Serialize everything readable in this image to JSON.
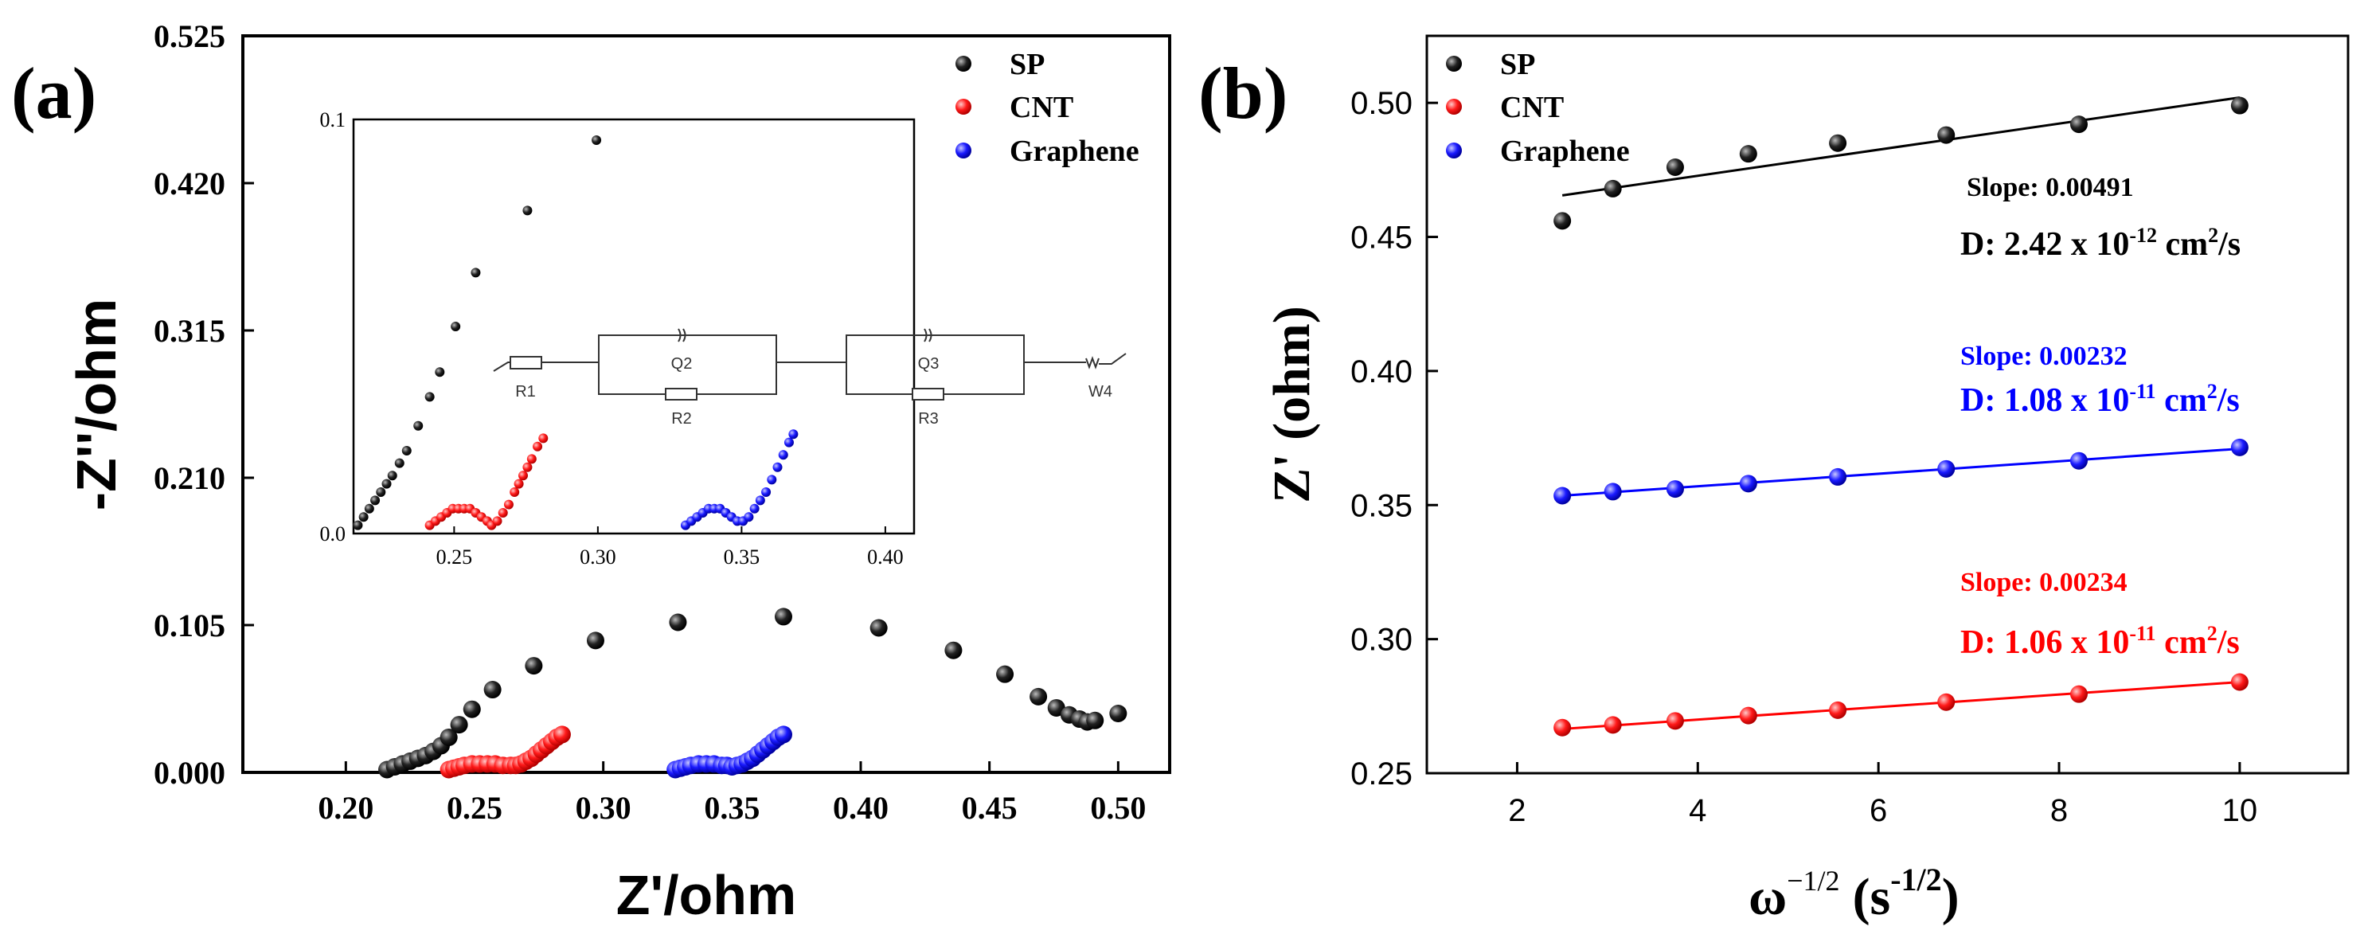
{
  "panel_labels": {
    "a": "(a)",
    "b": "(b)"
  },
  "colors": {
    "SP": "#000000",
    "CNT": "#ff0000",
    "Graphene": "#0000ff"
  },
  "chart_data": [
    {
      "id": "a",
      "type": "scatter",
      "title": "",
      "xlabel": "Z'/ohm",
      "ylabel": "-Z''/ohm",
      "xlim": [
        0.16,
        0.52
      ],
      "ylim": [
        0,
        0.525
      ],
      "xticks": [
        "0.20",
        "0.25",
        "0.30",
        "0.35",
        "0.40",
        "0.45",
        "0.50"
      ],
      "yticks": [
        "0.000",
        "0.105",
        "0.210",
        "0.315",
        "0.420",
        "0.525"
      ],
      "legend": [
        "SP",
        "CNT",
        "Graphene"
      ],
      "series": [
        {
          "name": "SP",
          "points": [
            [
              0.216,
              0.002
            ],
            [
              0.219,
              0.004
            ],
            [
              0.222,
              0.006
            ],
            [
              0.225,
              0.008
            ],
            [
              0.228,
              0.01
            ],
            [
              0.231,
              0.012
            ],
            [
              0.234,
              0.015
            ],
            [
              0.237,
              0.019
            ],
            [
              0.24,
              0.025
            ],
            [
              0.244,
              0.034
            ],
            [
              0.249,
              0.045
            ],
            [
              0.257,
              0.059
            ],
            [
              0.273,
              0.076
            ],
            [
              0.297,
              0.094
            ],
            [
              0.329,
              0.107
            ],
            [
              0.37,
              0.111
            ],
            [
              0.407,
              0.103
            ],
            [
              0.436,
              0.087
            ],
            [
              0.456,
              0.07
            ],
            [
              0.469,
              0.054
            ],
            [
              0.476,
              0.046
            ],
            [
              0.481,
              0.041
            ],
            [
              0.485,
              0.038
            ],
            [
              0.488,
              0.036
            ],
            [
              0.491,
              0.037
            ],
            [
              0.5,
              0.042
            ]
          ]
        },
        {
          "name": "CNT",
          "points": [
            [
              0.24,
              0.002
            ],
            [
              0.242,
              0.003
            ],
            [
              0.244,
              0.004
            ],
            [
              0.246,
              0.005
            ],
            [
              0.249,
              0.006
            ],
            [
              0.252,
              0.006
            ],
            [
              0.255,
              0.006
            ],
            [
              0.258,
              0.006
            ],
            [
              0.261,
              0.005
            ],
            [
              0.264,
              0.005
            ],
            [
              0.266,
              0.005
            ],
            [
              0.268,
              0.006
            ],
            [
              0.27,
              0.008
            ],
            [
              0.272,
              0.01
            ],
            [
              0.274,
              0.013
            ],
            [
              0.276,
              0.016
            ],
            [
              0.278,
              0.019
            ],
            [
              0.28,
              0.022
            ],
            [
              0.282,
              0.025
            ],
            [
              0.284,
              0.027
            ]
          ]
        },
        {
          "name": "Graphene",
          "points": [
            [
              0.328,
              0.002
            ],
            [
              0.33,
              0.003
            ],
            [
              0.332,
              0.004
            ],
            [
              0.334,
              0.005
            ],
            [
              0.337,
              0.006
            ],
            [
              0.34,
              0.006
            ],
            [
              0.343,
              0.006
            ],
            [
              0.346,
              0.005
            ],
            [
              0.348,
              0.005
            ],
            [
              0.35,
              0.004
            ],
            [
              0.352,
              0.005
            ],
            [
              0.354,
              0.006
            ],
            [
              0.356,
              0.008
            ],
            [
              0.358,
              0.01
            ],
            [
              0.36,
              0.013
            ],
            [
              0.362,
              0.016
            ],
            [
              0.364,
              0.019
            ],
            [
              0.366,
              0.022
            ],
            [
              0.368,
              0.025
            ],
            [
              0.37,
              0.027
            ]
          ]
        }
      ],
      "inset": {
        "xlim": [
          0.215,
          0.41
        ],
        "ylim": [
          0,
          0.1
        ],
        "xticks": [
          "0.25",
          "0.30",
          "0.35",
          "0.40"
        ],
        "yticks": [
          "0.0",
          "0.1"
        ],
        "series": [
          {
            "name": "SP",
            "points": [
              [
                0.2165,
                0.002
              ],
              [
                0.2185,
                0.004
              ],
              [
                0.2205,
                0.006
              ],
              [
                0.2225,
                0.008
              ],
              [
                0.2245,
                0.01
              ],
              [
                0.2265,
                0.012
              ],
              [
                0.2285,
                0.014
              ],
              [
                0.231,
                0.017
              ],
              [
                0.2335,
                0.02
              ],
              [
                0.2375,
                0.026
              ],
              [
                0.2415,
                0.033
              ],
              [
                0.245,
                0.039
              ],
              [
                0.2505,
                0.05
              ],
              [
                0.2575,
                0.063
              ],
              [
                0.2755,
                0.078
              ],
              [
                0.2995,
                0.095
              ]
            ]
          },
          {
            "name": "CNT",
            "points": [
              [
                0.2415,
                0.002
              ],
              [
                0.2435,
                0.003
              ],
              [
                0.2455,
                0.004
              ],
              [
                0.2475,
                0.005
              ],
              [
                0.2495,
                0.006
              ],
              [
                0.2515,
                0.006
              ],
              [
                0.2535,
                0.006
              ],
              [
                0.2555,
                0.006
              ],
              [
                0.2575,
                0.005
              ],
              [
                0.2595,
                0.004
              ],
              [
                0.2615,
                0.003
              ],
              [
                0.263,
                0.002
              ],
              [
                0.265,
                0.003
              ],
              [
                0.267,
                0.005
              ],
              [
                0.269,
                0.007
              ],
              [
                0.271,
                0.01
              ],
              [
                0.2725,
                0.012
              ],
              [
                0.274,
                0.014
              ],
              [
                0.2755,
                0.016
              ],
              [
                0.277,
                0.018
              ],
              [
                0.279,
                0.021
              ],
              [
                0.281,
                0.023
              ]
            ]
          },
          {
            "name": "Graphene",
            "points": [
              [
                0.3305,
                0.002
              ],
              [
                0.3325,
                0.003
              ],
              [
                0.3345,
                0.004
              ],
              [
                0.3365,
                0.005
              ],
              [
                0.3385,
                0.006
              ],
              [
                0.3405,
                0.006
              ],
              [
                0.3425,
                0.006
              ],
              [
                0.3445,
                0.005
              ],
              [
                0.3465,
                0.004
              ],
              [
                0.3485,
                0.003
              ],
              [
                0.3505,
                0.003
              ],
              [
                0.3525,
                0.004
              ],
              [
                0.3545,
                0.006
              ],
              [
                0.3565,
                0.008
              ],
              [
                0.3585,
                0.01
              ],
              [
                0.3605,
                0.013
              ],
              [
                0.3625,
                0.016
              ],
              [
                0.3645,
                0.019
              ],
              [
                0.3665,
                0.022
              ],
              [
                0.368,
                0.024
              ]
            ]
          }
        ],
        "circuit_labels": [
          "R1",
          "Q2",
          "R2",
          "Q3",
          "R3",
          "W4"
        ]
      }
    },
    {
      "id": "b",
      "type": "scatter",
      "title": "",
      "xlabel": "ω",
      "xlabel_exp": "−1/2",
      "xlabel_unit": "(s",
      "xlabel_unit_exp": "-1/2",
      "xlabel_close": ")",
      "ylabel": "Z' (ohm)",
      "xlim": [
        1,
        11.2
      ],
      "ylim": [
        0.25,
        0.525
      ],
      "xticks": [
        "2",
        "4",
        "6",
        "8",
        "10"
      ],
      "yticks": [
        "0.25",
        "0.30",
        "0.35",
        "0.40",
        "0.45",
        "0.50"
      ],
      "legend": [
        "SP",
        "CNT",
        "Graphene"
      ],
      "series": [
        {
          "name": "SP",
          "x": [
            2.5,
            3.06,
            3.75,
            4.56,
            5.55,
            6.75,
            8.22,
            10.0
          ],
          "y": [
            0.456,
            0.468,
            0.476,
            0.481,
            0.485,
            0.488,
            0.492,
            0.499
          ],
          "fit": [
            [
              2.5,
              0.4655
            ],
            [
              10.0,
              0.502
            ]
          ]
        },
        {
          "name": "CNT",
          "x": [
            2.5,
            3.06,
            3.75,
            4.56,
            5.55,
            6.75,
            8.22,
            10.0
          ],
          "y": [
            0.267,
            0.268,
            0.2695,
            0.2715,
            0.2735,
            0.2765,
            0.2795,
            0.284
          ],
          "fit": [
            [
              2.5,
              0.2665
            ],
            [
              10.0,
              0.284
            ]
          ]
        },
        {
          "name": "Graphene",
          "x": [
            2.5,
            3.06,
            3.75,
            4.56,
            5.55,
            6.75,
            8.22,
            10.0
          ],
          "y": [
            0.3535,
            0.355,
            0.356,
            0.358,
            0.3605,
            0.3635,
            0.3665,
            0.3715
          ],
          "fit": [
            [
              2.5,
              0.3535
            ],
            [
              10.0,
              0.371
            ]
          ]
        }
      ],
      "annotations": {
        "sp_slope": "Slope: 0.00491",
        "sp_d": "D: 2.42 x 10",
        "sp_d_exp": "-12",
        "sp_d_unit": " cm",
        "sp_d_unit_exp": "2",
        "sp_d_tail": "/s",
        "gr_slope": "Slope: 0.00232",
        "gr_d": "D: 1.08 x 10",
        "gr_d_exp": "-11",
        "gr_d_unit": " cm",
        "gr_d_unit_exp": "2",
        "gr_d_tail": "/s",
        "cnt_slope": "Slope: 0.00234",
        "cnt_d": "D: 1.06 x 10",
        "cnt_d_exp": "-11",
        "cnt_d_unit": " cm",
        "cnt_d_unit_exp": "2",
        "cnt_d_tail": "/s"
      }
    }
  ]
}
